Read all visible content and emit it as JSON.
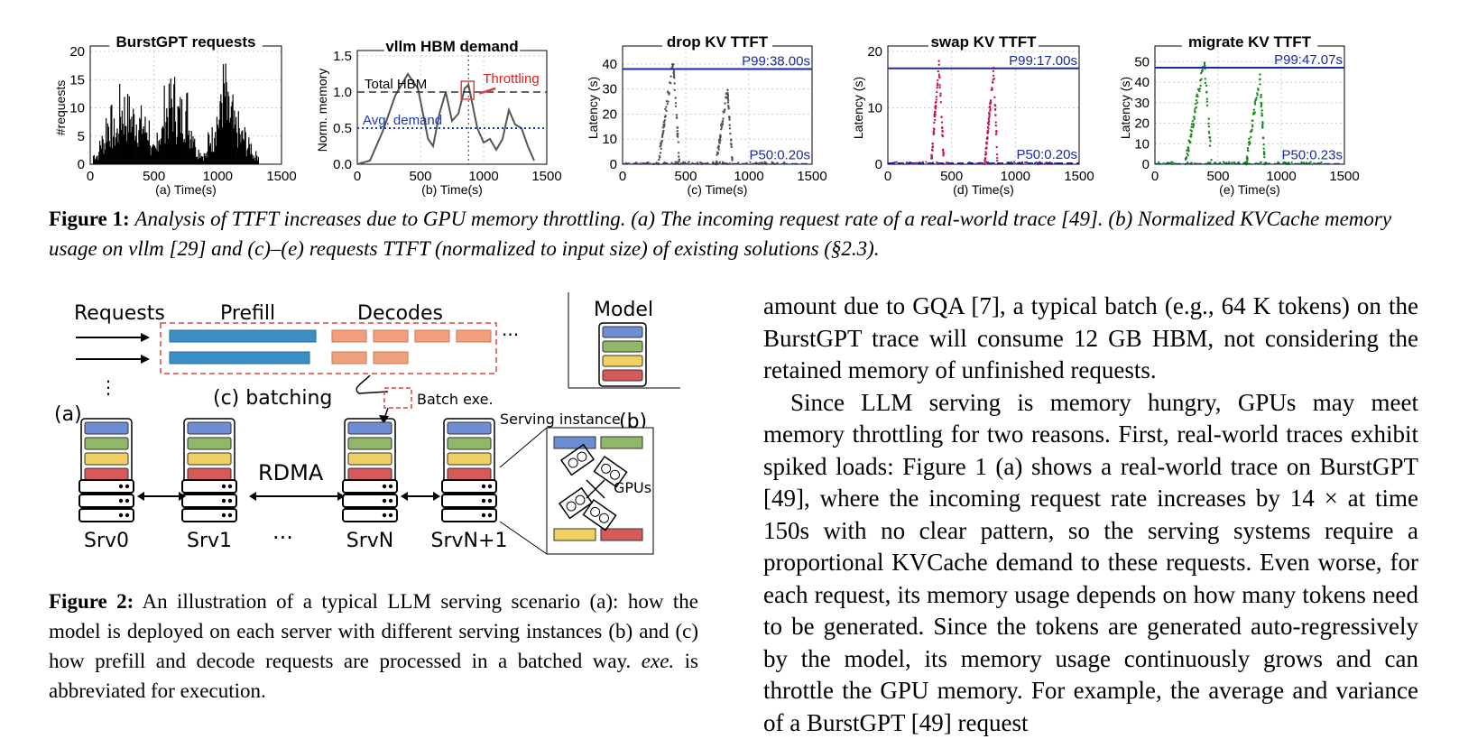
{
  "figure1": {
    "panels": [
      {
        "title": "BurstGPT requests",
        "xlabel": "(a) Time(s)",
        "ylabel": "#requests",
        "xticks": [
          "0",
          "500",
          "1000",
          "1500"
        ],
        "yticks": [
          "0",
          "5",
          "10",
          "15",
          "20"
        ]
      },
      {
        "title": "vllm HBM demand",
        "xlabel": "(b) Time(s)",
        "ylabel": "Norm. memory",
        "xticks": [
          "0",
          "500",
          "1000",
          "1500"
        ],
        "yticks": [
          "0.0",
          "0.5",
          "1.0",
          "1.5"
        ],
        "annotations": {
          "total": "Total HBM",
          "avg": "Avg. demand",
          "throttle": "Throttling"
        }
      },
      {
        "title": "drop KV TTFT",
        "xlabel": "(c) Time(s)",
        "ylabel": "Latency (s)",
        "xticks": [
          "0",
          "500",
          "1000",
          "1500"
        ],
        "yticks": [
          "0",
          "10",
          "20",
          "30",
          "40"
        ],
        "p99": "P99:38.00s",
        "p50": "P50:0.20s"
      },
      {
        "title": "swap KV TTFT",
        "xlabel": "(d) Time(s)",
        "ylabel": "Latency (s)",
        "xticks": [
          "0",
          "500",
          "1000",
          "1500"
        ],
        "yticks": [
          "0",
          "10",
          "20"
        ],
        "p99": "P99:17.00s",
        "p50": "P50:0.20s"
      },
      {
        "title": "migrate KV TTFT",
        "xlabel": "(e) Time(s)",
        "ylabel": "Latency (s)",
        "xticks": [
          "0",
          "500",
          "1000",
          "1500"
        ],
        "yticks": [
          "0",
          "10",
          "20",
          "30",
          "40",
          "50"
        ],
        "p99": "P99:47.07s",
        "p50": "P50:0.23s"
      }
    ],
    "caption_lead": "Figure 1:",
    "caption_body": "Analysis of TTFT increases due to GPU memory throttling. (a) The incoming request rate of a real-world trace [49]. (b) Normalized KVCache memory usage on vllm [29] and (c)–(e) requests TTFT (normalized to input size) of existing solutions (§2.3)."
  },
  "chart_data": [
    {
      "type": "bar",
      "title": "BurstGPT requests",
      "xlabel": "(a) Time(s)",
      "ylabel": "#requests",
      "xlim": [
        0,
        1500
      ],
      "ylim": [
        0,
        20
      ],
      "grid": true,
      "x": [
        50,
        100,
        150,
        200,
        250,
        300,
        350,
        400,
        450,
        500,
        550,
        600,
        650,
        700,
        750,
        800,
        850,
        900,
        950,
        1000,
        1050,
        1100,
        1150,
        1200,
        1250,
        1300
      ],
      "values": [
        2,
        5,
        9,
        7,
        12,
        11,
        10,
        9,
        8,
        3,
        7,
        12,
        14,
        11,
        12,
        8,
        3,
        2,
        6,
        10,
        16,
        11,
        8,
        6,
        4,
        2
      ]
    },
    {
      "type": "line",
      "title": "vllm HBM demand",
      "xlabel": "(b) Time(s)",
      "ylabel": "Norm. memory",
      "xlim": [
        0,
        1500
      ],
      "ylim": [
        0,
        1.5
      ],
      "grid": true,
      "series": [
        {
          "x": [
            0,
            100,
            200,
            300,
            400,
            480,
            560,
            600,
            650,
            700,
            750,
            800,
            850,
            880,
            950,
            1000,
            1050,
            1100,
            1150,
            1200,
            1250,
            1300,
            1350,
            1400
          ],
          "values": [
            0,
            0.05,
            0.45,
            0.95,
            1.25,
            1.05,
            0.35,
            0.25,
            0.7,
            1.0,
            0.6,
            0.7,
            1.05,
            1.1,
            0.5,
            0.3,
            0.35,
            0.2,
            0.35,
            0.75,
            0.55,
            0.5,
            0.25,
            0.05
          ]
        }
      ],
      "hlines": [
        {
          "label": "Total HBM",
          "y": 1.0
        },
        {
          "label": "Avg. demand",
          "y": 0.5
        }
      ],
      "vline_x": 880
    },
    {
      "type": "scatter",
      "title": "drop KV TTFT",
      "xlabel": "(c) Time(s)",
      "ylabel": "Latency (s)",
      "xlim": [
        0,
        1500
      ],
      "ylim": [
        0,
        45
      ],
      "grid": true,
      "p99": 38.0,
      "p50": 0.2,
      "peaks": [
        {
          "start": 280,
          "peak_x": 400,
          "peak_y": 41,
          "end": 450
        },
        {
          "start": 740,
          "peak_x": 830,
          "peak_y": 30,
          "end": 870
        }
      ],
      "color": "#555555"
    },
    {
      "type": "scatter",
      "title": "swap KV TTFT",
      "xlabel": "(d) Time(s)",
      "ylabel": "Latency (s)",
      "xlim": [
        0,
        1500
      ],
      "ylim": [
        0,
        20
      ],
      "grid": true,
      "p99": 17.0,
      "p50": 0.2,
      "peaks": [
        {
          "start": 340,
          "peak_x": 400,
          "peak_y": 18,
          "end": 440
        },
        {
          "start": 760,
          "peak_x": 830,
          "peak_y": 17,
          "end": 860
        }
      ],
      "color": "#c2185b"
    },
    {
      "type": "scatter",
      "title": "migrate KV TTFT",
      "xlabel": "(e) Time(s)",
      "ylabel": "Latency (s)",
      "xlim": [
        0,
        1500
      ],
      "ylim": [
        0,
        55
      ],
      "grid": true,
      "p99": 47.07,
      "p50": 0.23,
      "peaks": [
        {
          "start": 240,
          "peak_x": 390,
          "peak_y": 50,
          "end": 450
        },
        {
          "start": 720,
          "peak_x": 830,
          "peak_y": 43,
          "end": 870
        }
      ],
      "color": "#1b8a1b"
    }
  ],
  "figure2": {
    "labels": {
      "requests": "Requests",
      "prefill": "Prefill",
      "decodes": "Decodes",
      "model": "Model",
      "batching": "(c) batching",
      "batch_exe": "Batch exe.",
      "a": "(a)",
      "b": "(b)",
      "serving_instance": "Serving instance",
      "rdma": "RDMA",
      "gpus": "GPUs",
      "ellipsis": "···"
    },
    "servers": [
      "Srv0",
      "Srv1",
      "SrvN",
      "SrvN+1"
    ],
    "caption_lead": "Figure 2:",
    "caption_body": "An illustration of a typical LLM serving scenario (a): how the model is deployed on each server with different serving instances (b) and (c) how prefill and decode requests are processed in a batched way.",
    "caption_italic": "exe.",
    "caption_tail": "is abbreviated for execution."
  },
  "colors": {
    "blue": "#6d8ed6",
    "green": "#8fb86a",
    "yellow": "#f0d060",
    "red": "#d65a5a",
    "prefill": "#3c8fc4",
    "decode": "#f0a07c",
    "dash_red": "#e04040"
  },
  "body_text": {
    "p1": "amount due to GQA [7], a typical batch (e.g., 64 K tokens) on the BurstGPT trace will consume 12 GB HBM, not considering the retained memory of unfinished requests.",
    "p2": "Since LLM serving is memory hungry, GPUs may meet memory throttling for two reasons. First, real-world traces exhibit spiked loads: Figure 1 (a) shows a real-world trace on BurstGPT [49], where the incoming request rate increases by 14 × at time 150s with no clear pattern, so the serving systems require a proportional KVCache demand to these requests. Even worse, for each request, its memory usage depends on how many tokens need to be generated. Since the tokens are generated auto-regressively by the model, its memory usage continuously grows and can throttle the GPU memory. For example, the average and variance of a BurstGPT [49] request"
  }
}
